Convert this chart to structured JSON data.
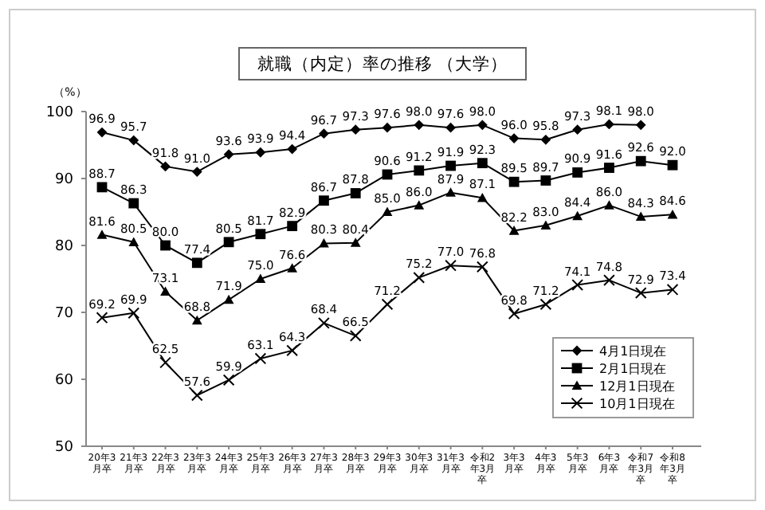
{
  "chart_data": {
    "type": "line",
    "title": "就職（内定）率の推移 （大学）",
    "ylabel": "（%）",
    "categories": [
      "20年3月卒",
      "21年3月卒",
      "22年3月卒",
      "23年3月卒",
      "24年3月卒",
      "25年3月卒",
      "26年3月卒",
      "27年3月卒",
      "28年3月卒",
      "29年3月卒",
      "30年3月卒",
      "31年3月卒",
      "令和2年3月卒",
      "3年3月卒",
      "4年3月卒",
      "5年3月卒",
      "6年3月卒",
      "令和7年3月卒",
      "令和8年3月卒"
    ],
    "series": [
      {
        "name": "4月1日現在",
        "color": "#000000",
        "marker": "diamond",
        "values": [
          96.9,
          95.7,
          91.8,
          91.0,
          93.6,
          93.9,
          94.4,
          96.7,
          97.3,
          97.6,
          98.0,
          97.6,
          98.0,
          96.0,
          95.8,
          97.3,
          98.1,
          98.0,
          null
        ],
        "value_labels": [
          "96.9",
          "95.7",
          "91.8",
          "91.0",
          "93.6",
          "93.9",
          "94.4",
          "96.7",
          "97.3",
          "97.6",
          "98.0",
          "97.6",
          "98.0",
          "96.0",
          "95.8",
          "97.3",
          "98.1",
          "98.0",
          null
        ]
      },
      {
        "name": "2月1日現在",
        "color": "#000000",
        "marker": "square",
        "values": [
          88.7,
          86.3,
          80.0,
          77.4,
          80.5,
          81.7,
          82.9,
          86.7,
          87.8,
          90.6,
          91.2,
          91.9,
          92.3,
          89.5,
          89.7,
          90.9,
          91.6,
          92.6,
          92.0
        ],
        "value_labels": [
          "88.7",
          "86.3",
          "80.0",
          "77.4",
          "80.5",
          "81.7",
          "82.9",
          "86.7",
          "87.8",
          "90.6",
          "91.2",
          "91.9",
          "92.3",
          "89.5",
          "89.7",
          "90.9",
          "91.6",
          "92.6",
          "92.0"
        ]
      },
      {
        "name": "12月1日現在",
        "color": "#000000",
        "marker": "triangle",
        "values": [
          81.6,
          80.5,
          73.1,
          68.8,
          71.9,
          75.0,
          76.6,
          80.3,
          80.4,
          85.0,
          86.0,
          87.9,
          87.1,
          82.2,
          83.0,
          84.4,
          86.0,
          84.3,
          84.6
        ],
        "value_labels": [
          "81.6",
          "80.5",
          "73.1",
          "68.8",
          "71.9",
          "75.0",
          "76.6",
          "80.3",
          "80.4",
          "85.0",
          "86.0",
          "87.9",
          "87.1",
          "82.2",
          "83.0",
          "84.4",
          "86.0",
          "84.3",
          "84.6"
        ]
      },
      {
        "name": "10月1日現在",
        "color": "#000000",
        "marker": "cross",
        "values": [
          69.2,
          69.9,
          62.5,
          57.6,
          59.9,
          63.1,
          64.3,
          68.4,
          66.5,
          71.2,
          75.2,
          77.0,
          76.8,
          69.8,
          71.2,
          74.1,
          74.8,
          72.9,
          73.4
        ],
        "value_labels": [
          "69.2",
          "69.9",
          "62.5",
          "57.6",
          "59.9",
          "63.1",
          "64.3",
          "68.4",
          "66.5",
          "71.2",
          "75.2",
          "77.0",
          "76.8",
          "69.8",
          "71.2",
          "74.1",
          "74.8",
          "72.9",
          "73.4"
        ]
      }
    ],
    "ylim": [
      50,
      100
    ],
    "yticks": [
      50,
      60,
      70,
      80,
      90,
      100
    ],
    "legend": "bottom right",
    "line_style": "solid"
  }
}
